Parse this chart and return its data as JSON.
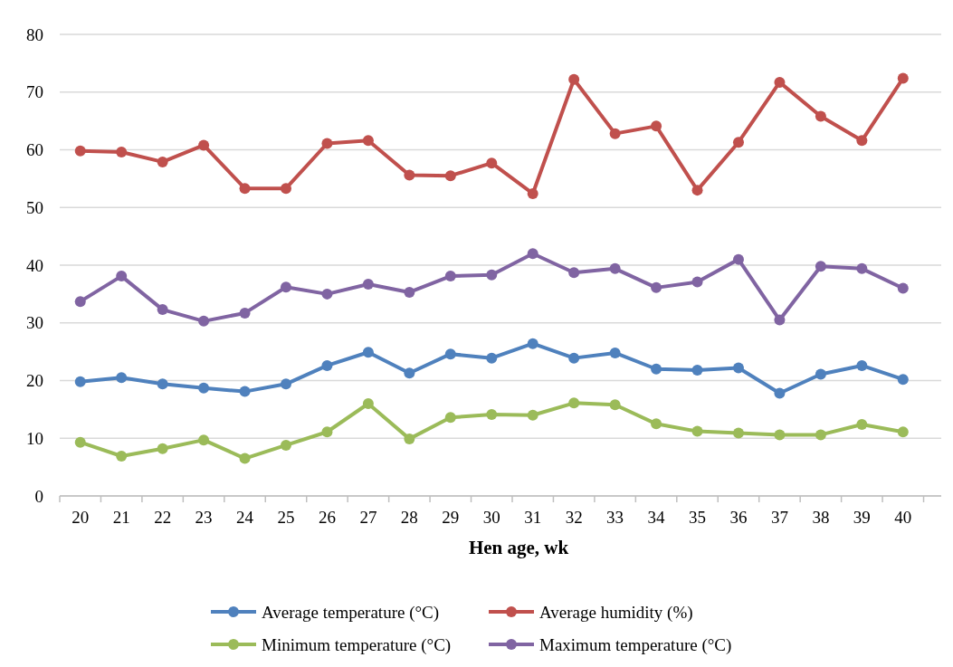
{
  "chart_data": {
    "type": "line",
    "xlabel": "Hen age, wk",
    "categories": [
      "20",
      "21",
      "22",
      "23",
      "24",
      "25",
      "26",
      "27",
      "28",
      "29",
      "30",
      "31",
      "32",
      "33",
      "34",
      "35",
      "36",
      "37",
      "38",
      "39",
      "40"
    ],
    "ylim": [
      0,
      80
    ],
    "yticks": [
      0,
      10,
      20,
      30,
      40,
      50,
      60,
      70,
      80
    ],
    "grid": "y",
    "legend": "bottom",
    "marker": "circle",
    "line_style": "solid",
    "series": [
      {
        "name": "Average temperature (°C)",
        "color": "#4f81bd",
        "values": [
          19.8,
          20.5,
          19.4,
          18.7,
          18.1,
          19.4,
          22.6,
          24.9,
          21.3,
          24.6,
          23.9,
          26.4,
          23.9,
          24.8,
          22.0,
          21.8,
          22.2,
          17.8,
          21.1,
          22.6,
          20.2
        ]
      },
      {
        "name": "Average humidity (%)",
        "color": "#c0504d",
        "values": [
          59.8,
          59.6,
          57.9,
          60.8,
          53.3,
          53.3,
          61.1,
          61.6,
          55.6,
          55.5,
          57.7,
          52.4,
          72.2,
          62.8,
          64.1,
          53.0,
          61.3,
          71.7,
          65.8,
          61.6,
          72.4
        ]
      },
      {
        "name": "Minimum temperature (°C)",
        "color": "#9bbb59",
        "values": [
          9.3,
          6.9,
          8.2,
          9.7,
          6.5,
          8.8,
          11.1,
          16.0,
          9.9,
          13.6,
          14.1,
          14.0,
          16.1,
          15.8,
          12.5,
          11.2,
          10.9,
          10.6,
          10.6,
          12.4,
          11.1
        ]
      },
      {
        "name": "Maximum temperature (°C)",
        "color": "#8064a2",
        "values": [
          33.7,
          38.1,
          32.3,
          30.3,
          31.7,
          36.2,
          35.0,
          36.7,
          35.3,
          38.1,
          38.3,
          42.0,
          38.7,
          39.4,
          36.1,
          37.1,
          41.0,
          30.5,
          39.8,
          39.4,
          36.0
        ]
      }
    ]
  }
}
